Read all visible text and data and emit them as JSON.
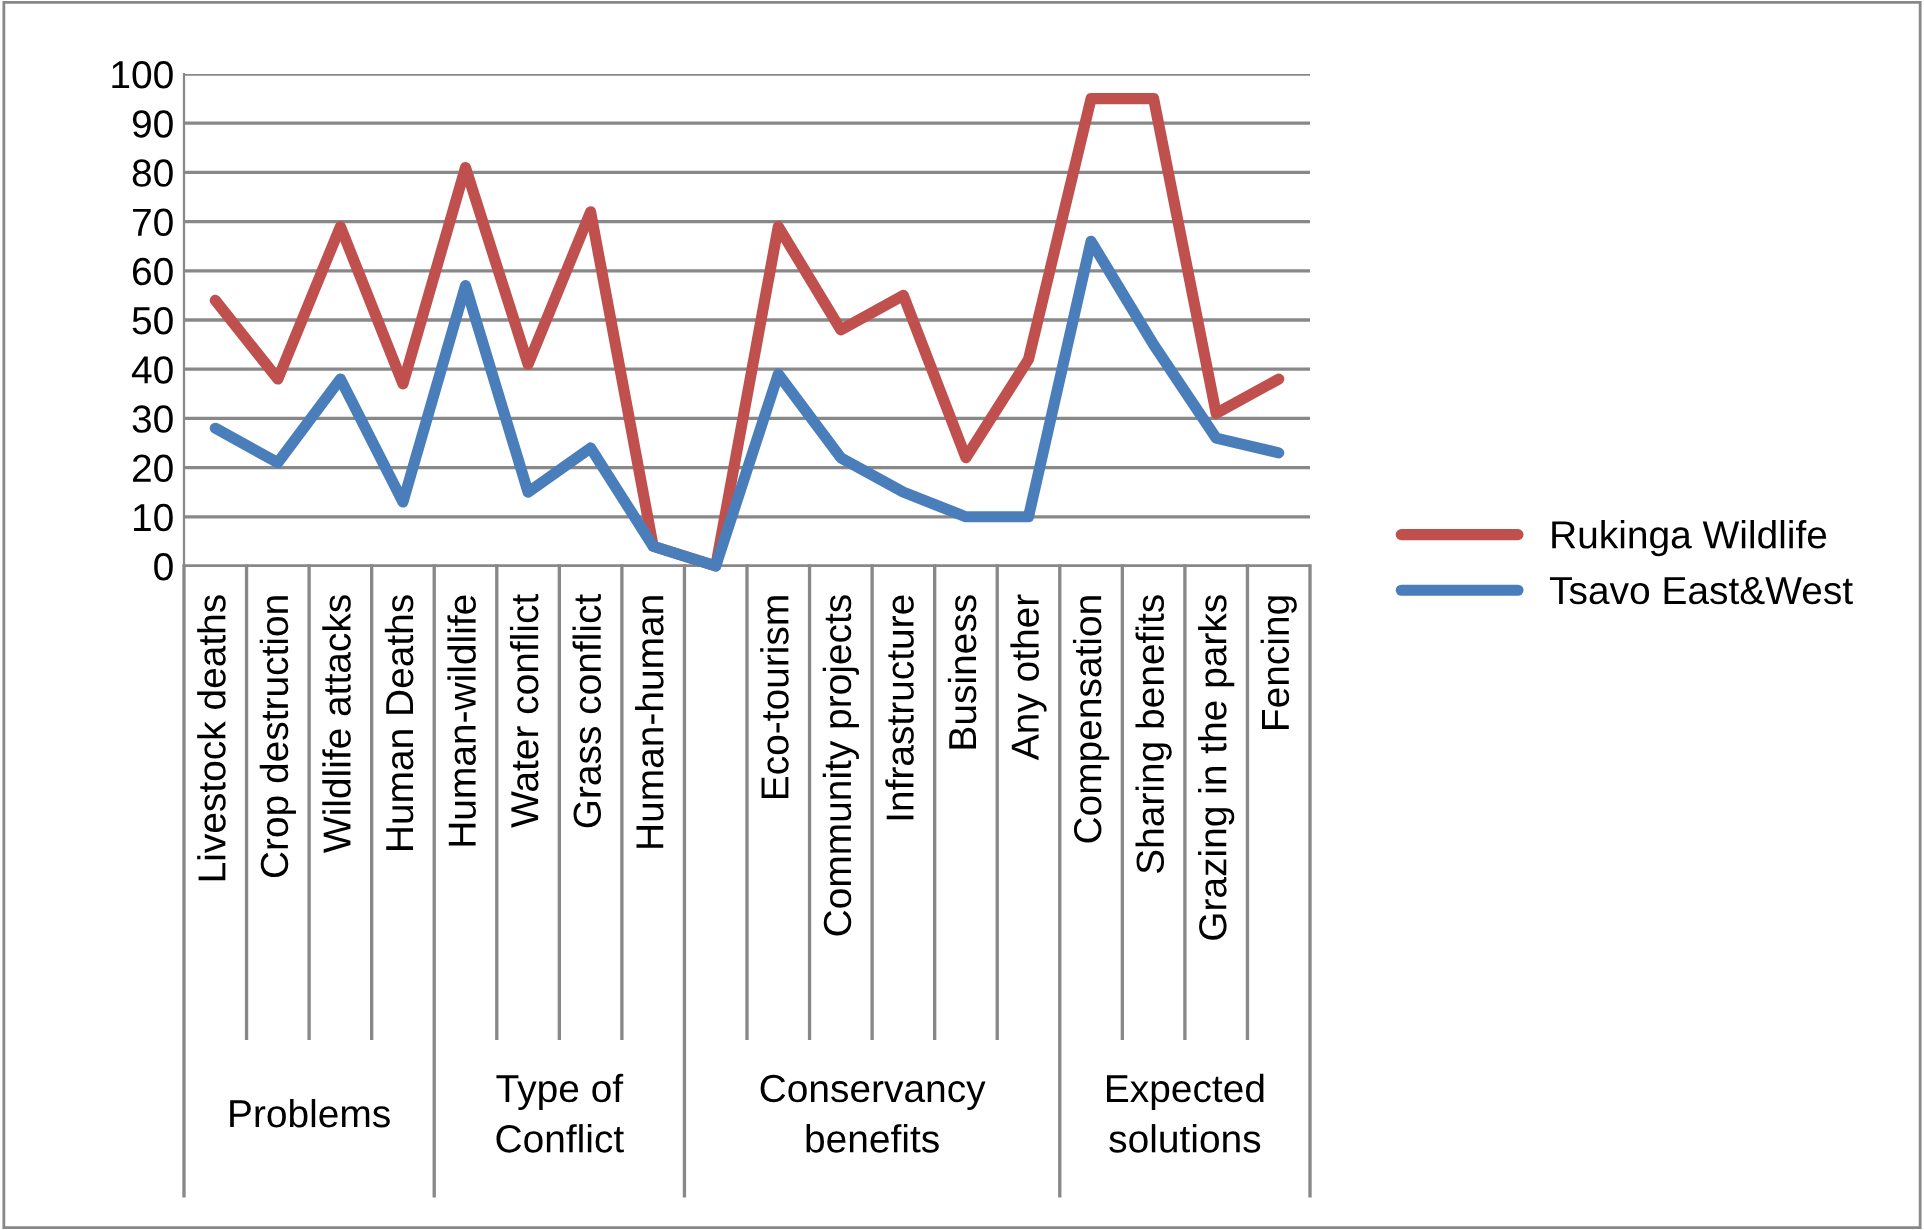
{
  "chart_data": {
    "type": "line",
    "categories": [
      "Livestock deaths",
      "Crop destruction",
      "Wildlife attacks",
      "Human Deaths",
      "Human-wildlife",
      "Water conflict",
      "Grass conflict",
      "Human-human",
      null,
      "Eco-tourism",
      "Community projects",
      "Infrastructure",
      "Business",
      "Any other",
      "Compensation",
      "Sharing benefits",
      "Grazing in the parks",
      "Fencing"
    ],
    "series": [
      {
        "name": "Rukinga Wildlife",
        "color": "#c0504d",
        "values": [
          54,
          38,
          69,
          37,
          81,
          41,
          72,
          4,
          0,
          69,
          48,
          55,
          22,
          42,
          95,
          95,
          31,
          38
        ]
      },
      {
        "name": "Tsavo East&West",
        "color": "#4a7ebb",
        "values": [
          28,
          21,
          38,
          13,
          57,
          15,
          24,
          4,
          0,
          39,
          22,
          15,
          10,
          10,
          66,
          45,
          26,
          23
        ]
      }
    ],
    "annotations": [
      "Problems",
      "Type of Conflict",
      "Conservancy benefits",
      "Expected solutions"
    ],
    "ylim": [
      0,
      100
    ],
    "yticks": [
      0,
      10,
      20,
      30,
      40,
      50,
      60,
      70,
      80,
      90,
      100
    ],
    "grid": "y",
    "legend": "right",
    "marker": "none",
    "line_style": "solid"
  }
}
